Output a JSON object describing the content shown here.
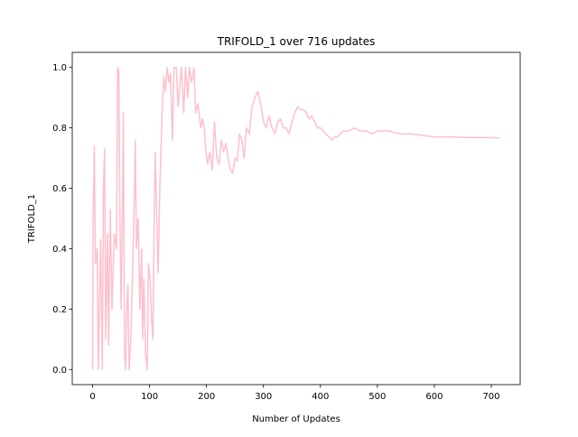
{
  "chart_data": {
    "type": "line",
    "title": "TRIFOLD_1 over 716 updates",
    "xlabel": "Number of Updates",
    "ylabel": "TRIFOLD_1",
    "x": [
      0,
      1,
      3,
      5,
      8,
      10,
      14,
      17,
      19,
      21,
      23,
      26,
      28,
      31,
      34,
      38,
      42,
      44,
      46,
      48,
      50,
      52,
      54,
      56,
      58,
      60,
      62,
      64,
      67,
      70,
      73,
      75,
      77,
      80,
      83,
      86,
      88,
      90,
      93,
      96,
      98,
      101,
      104,
      106,
      108,
      110,
      112,
      115,
      118,
      122,
      125,
      128,
      131,
      134,
      137,
      140,
      143,
      147,
      150,
      153,
      156,
      160,
      163,
      167,
      170,
      174,
      178,
      181,
      185,
      190,
      193,
      196,
      199,
      202,
      206,
      210,
      214,
      218,
      222,
      226,
      230,
      234,
      238,
      242,
      246,
      250,
      254,
      258,
      262,
      266,
      270,
      275,
      280,
      285,
      290,
      295,
      300,
      305,
      310,
      315,
      320,
      325,
      330,
      335,
      340,
      345,
      350,
      355,
      360,
      365,
      370,
      375,
      380,
      385,
      390,
      395,
      400,
      405,
      410,
      415,
      420,
      425,
      430,
      440,
      450,
      460,
      470,
      480,
      490,
      500,
      520,
      540,
      560,
      580,
      600,
      630,
      660,
      690,
      715
    ],
    "series": [
      {
        "name": "TRIFOLD_1",
        "color": "#ffc0cb",
        "values": [
          0,
          0.5,
          0.74,
          0.35,
          0.4,
          0,
          0.43,
          0,
          0.6,
          0.73,
          0.1,
          0.45,
          0.08,
          0.53,
          0.2,
          0.45,
          0.4,
          1.0,
          0.99,
          0.5,
          0.2,
          0.45,
          0.85,
          0.05,
          0,
          0.2,
          0.28,
          0,
          0.1,
          0.3,
          0.55,
          0.76,
          0.4,
          0.5,
          0.2,
          0.4,
          0.1,
          0.3,
          0.05,
          0,
          0.35,
          0.3,
          0.15,
          0.1,
          0.5,
          0.72,
          0.55,
          0.32,
          0.6,
          0.85,
          0.97,
          0.92,
          1.0,
          0.95,
          0.98,
          0.76,
          1.0,
          1.0,
          0.87,
          0.94,
          1.0,
          0.85,
          1.0,
          0.9,
          1.0,
          0.95,
          1.0,
          0.85,
          0.88,
          0.8,
          0.83,
          0.8,
          0.72,
          0.68,
          0.72,
          0.66,
          0.82,
          0.7,
          0.68,
          0.76,
          0.72,
          0.75,
          0.7,
          0.66,
          0.65,
          0.7,
          0.69,
          0.78,
          0.76,
          0.7,
          0.8,
          0.78,
          0.87,
          0.9,
          0.92,
          0.88,
          0.82,
          0.8,
          0.84,
          0.8,
          0.78,
          0.82,
          0.83,
          0.8,
          0.8,
          0.78,
          0.82,
          0.85,
          0.87,
          0.86,
          0.86,
          0.85,
          0.83,
          0.84,
          0.82,
          0.8,
          0.8,
          0.79,
          0.78,
          0.77,
          0.76,
          0.77,
          0.77,
          0.79,
          0.79,
          0.8,
          0.79,
          0.79,
          0.78,
          0.79,
          0.79,
          0.78,
          0.78,
          0.775,
          0.77,
          0.77,
          0.768,
          0.768,
          0.767
        ]
      }
    ],
    "xlim": [
      -35.75,
      750.75
    ],
    "xticks": [
      0,
      100,
      200,
      300,
      400,
      500,
      600,
      700
    ],
    "ylim": [
      -0.05,
      1.05
    ],
    "yticks": [
      {
        "value": 0,
        "label": "0.0"
      },
      0.2,
      0.4,
      0.6,
      0.8,
      {
        "value": 1,
        "label": "1.0"
      }
    ]
  }
}
